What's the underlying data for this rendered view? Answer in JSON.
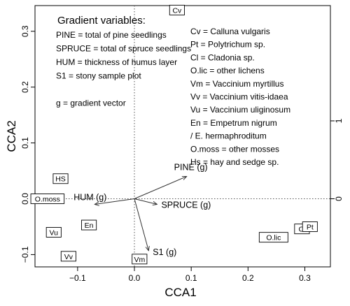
{
  "chart_data": {
    "type": "scatter",
    "title": "",
    "xlabel": "CCA1",
    "ylabel": "CCA2",
    "xlim": [
      -0.175,
      0.345
    ],
    "ylim": [
      -0.122,
      0.346
    ],
    "x_ticks": [
      -0.1,
      0.0,
      0.1,
      0.2,
      0.3
    ],
    "y_ticks": [
      -0.1,
      0.0,
      0.1,
      0.2,
      0.3
    ],
    "x_tick_labels": [
      "−0.1",
      "0.0",
      "0.1",
      "0.2",
      "0.3"
    ],
    "y_tick_labels": [
      "−0.1",
      "0.0",
      "0.1",
      "0.2",
      "0.3"
    ],
    "right_axis_ticks": [
      0,
      1
    ],
    "right_axis_tick_labels": [
      "0",
      "1"
    ],
    "grid": false,
    "species": [
      {
        "label": "Cv",
        "x": 0.075,
        "y": 0.338
      },
      {
        "label": "HS",
        "x": -0.13,
        "y": 0.036
      },
      {
        "label": "O.moss",
        "x": -0.153,
        "y": 0.0
      },
      {
        "label": "En",
        "x": -0.08,
        "y": -0.047
      },
      {
        "label": "Vu",
        "x": -0.142,
        "y": -0.06
      },
      {
        "label": "Vv",
        "x": -0.116,
        "y": -0.103
      },
      {
        "label": "Vm",
        "x": 0.009,
        "y": -0.108
      },
      {
        "label": "O.lic",
        "x": 0.245,
        "y": -0.069
      },
      {
        "label": "Cl",
        "x": 0.295,
        "y": -0.054
      },
      {
        "label": "Pt",
        "x": 0.309,
        "y": -0.05
      }
    ],
    "vectors": [
      {
        "label": "PINE (g)",
        "x": 0.092,
        "y": 0.04
      },
      {
        "label": "HUM (g)",
        "x": -0.07,
        "y": -0.01
      },
      {
        "label": "SPRUCE (g)",
        "x": 0.04,
        "y": -0.01
      },
      {
        "label": "S1 (g)",
        "x": 0.025,
        "y": -0.093
      }
    ],
    "gradient_legend": {
      "heading": "Gradient variables:",
      "lines": [
        "PINE = total of pine seedlings",
        "SPRUCE = total of spruce seedlings",
        "HUM = thickness of humus layer",
        "S1 = stony sample plot",
        "",
        "g = gradient vector"
      ]
    },
    "species_legend": {
      "lines": [
        "Cv = Calluna vulgaris",
        "Pt = Polytrichum sp.",
        "Cl = Cladonia sp.",
        "O.lic = other lichens",
        "Vm = Vaccinium myrtillus",
        "Vv = Vaccinium vitis-idaea",
        "Vu = Vaccinium uliginosum",
        "En = Empetrum nigrum",
        "        / E. hermaphroditum",
        "O.moss = other mosses",
        "Hs = hay and sedge sp."
      ]
    }
  }
}
